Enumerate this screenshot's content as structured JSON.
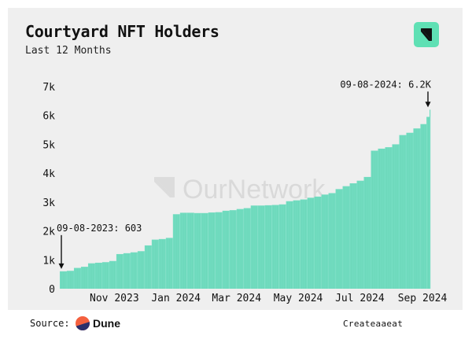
{
  "title": "Courtyard NFT Holders",
  "subtitle": "Last 12 Months",
  "watermark": "OurNetwork",
  "footer": {
    "source_label": "Source:",
    "source_name": "Dune",
    "credit": "Createaaeat"
  },
  "colors": {
    "bars": "#72dcc0",
    "logo": "#5fe0b4",
    "card_bg": "#efefef"
  },
  "icons": {
    "logo": "slash-logo-icon",
    "source": "dune-logo-icon"
  },
  "chart_data": {
    "type": "bar",
    "title": "Courtyard NFT Holders",
    "subtitle": "Last 12 Months",
    "y_ticks": [
      {
        "label": "0",
        "value": 0
      },
      {
        "label": "1k",
        "value": 1000
      },
      {
        "label": "2k",
        "value": 2000
      },
      {
        "label": "3k",
        "value": 3000
      },
      {
        "label": "4k",
        "value": 4000
      },
      {
        "label": "5k",
        "value": 5000
      },
      {
        "label": "6k",
        "value": 6000
      },
      {
        "label": "7k",
        "value": 7000
      }
    ],
    "ylim": [
      0,
      7000
    ],
    "x_ticks": [
      {
        "label": "Nov 2023",
        "date": "2023-11-01"
      },
      {
        "label": "Jan 2024",
        "date": "2024-01-01"
      },
      {
        "label": "Mar 2024",
        "date": "2024-03-01"
      },
      {
        "label": "May 2024",
        "date": "2024-05-01"
      },
      {
        "label": "Jul 2024",
        "date": "2024-07-01"
      },
      {
        "label": "Sep 2024",
        "date": "2024-09-01"
      }
    ],
    "x_range": [
      "2023-09-08",
      "2024-09-08"
    ],
    "grid": false,
    "series": [
      {
        "points": [
          [
            "2023-09-08",
            603
          ],
          [
            "2023-09-15",
            620
          ],
          [
            "2023-09-22",
            720
          ],
          [
            "2023-09-29",
            760
          ],
          [
            "2023-10-06",
            880
          ],
          [
            "2023-10-13",
            900
          ],
          [
            "2023-10-20",
            920
          ],
          [
            "2023-10-27",
            960
          ],
          [
            "2023-11-03",
            1200
          ],
          [
            "2023-11-10",
            1230
          ],
          [
            "2023-11-17",
            1260
          ],
          [
            "2023-11-24",
            1300
          ],
          [
            "2023-12-01",
            1500
          ],
          [
            "2023-12-08",
            1700
          ],
          [
            "2023-12-15",
            1720
          ],
          [
            "2023-12-22",
            1760
          ],
          [
            "2023-12-29",
            2580
          ],
          [
            "2024-01-05",
            2630
          ],
          [
            "2024-01-12",
            2630
          ],
          [
            "2024-01-19",
            2620
          ],
          [
            "2024-01-26",
            2620
          ],
          [
            "2024-02-02",
            2640
          ],
          [
            "2024-02-09",
            2650
          ],
          [
            "2024-02-16",
            2700
          ],
          [
            "2024-02-23",
            2720
          ],
          [
            "2024-03-01",
            2760
          ],
          [
            "2024-03-08",
            2790
          ],
          [
            "2024-03-15",
            2880
          ],
          [
            "2024-03-22",
            2880
          ],
          [
            "2024-03-29",
            2890
          ],
          [
            "2024-04-05",
            2900
          ],
          [
            "2024-04-12",
            2920
          ],
          [
            "2024-04-19",
            3030
          ],
          [
            "2024-04-26",
            3060
          ],
          [
            "2024-05-03",
            3090
          ],
          [
            "2024-05-10",
            3150
          ],
          [
            "2024-05-17",
            3190
          ],
          [
            "2024-05-24",
            3260
          ],
          [
            "2024-05-31",
            3310
          ],
          [
            "2024-06-07",
            3450
          ],
          [
            "2024-06-14",
            3550
          ],
          [
            "2024-06-21",
            3650
          ],
          [
            "2024-06-28",
            3740
          ],
          [
            "2024-07-05",
            3870
          ],
          [
            "2024-07-12",
            4780
          ],
          [
            "2024-07-19",
            4850
          ],
          [
            "2024-07-26",
            4900
          ],
          [
            "2024-08-02",
            5000
          ],
          [
            "2024-08-09",
            5320
          ],
          [
            "2024-08-16",
            5400
          ],
          [
            "2024-08-23",
            5550
          ],
          [
            "2024-08-30",
            5700
          ],
          [
            "2024-09-05",
            5950
          ],
          [
            "2024-09-08",
            6200
          ]
        ]
      }
    ],
    "annotations": [
      {
        "text": "09-08-2023: 603",
        "date": "2023-09-08",
        "value": 603,
        "side": "start"
      },
      {
        "text": "09-08-2024: 6.2K",
        "date": "2024-09-08",
        "value": 6200,
        "side": "end"
      }
    ]
  }
}
